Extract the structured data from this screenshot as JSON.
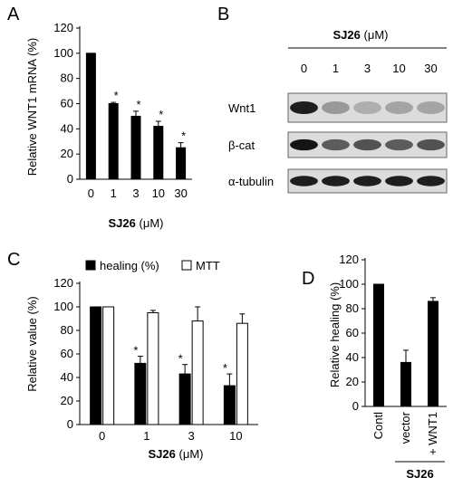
{
  "chart_data": [
    {
      "panel": "A",
      "type": "bar",
      "categories": [
        "0",
        "1",
        "3",
        "10",
        "30"
      ],
      "values": [
        100,
        60,
        50,
        42,
        25
      ],
      "errors": [
        0,
        1,
        4,
        4,
        4
      ],
      "significance": [
        "",
        "*",
        "*",
        "*",
        "*"
      ],
      "ylabel": "Relative WNT1 mRNA (%)",
      "xlabel_bold": "SJ26",
      "xlabel_unit": "(μM)",
      "ylim": [
        0,
        120
      ],
      "yticks": [
        0,
        20,
        40,
        60,
        80,
        100,
        120
      ],
      "color": "#000000"
    },
    {
      "panel": "C",
      "type": "bar",
      "categories": [
        "0",
        "1",
        "3",
        "10"
      ],
      "series": [
        {
          "name": "healing (%)",
          "values": [
            100,
            52,
            43,
            33
          ],
          "errors": [
            0,
            6,
            8,
            10
          ],
          "color": "#000000",
          "significance": [
            "",
            "*",
            "*",
            "*"
          ]
        },
        {
          "name": "MTT",
          "values": [
            100,
            95,
            88,
            86
          ],
          "errors": [
            0,
            2,
            12,
            8
          ],
          "color": "#ffffff",
          "significance": [
            "",
            "",
            "",
            ""
          ]
        }
      ],
      "ylabel": "Relative value (%)",
      "xlabel_bold": "SJ26",
      "xlabel_unit": "(μM)",
      "ylim": [
        0,
        120
      ],
      "yticks": [
        0,
        20,
        40,
        60,
        80,
        100,
        120
      ],
      "legend_position": "top"
    },
    {
      "panel": "D",
      "type": "bar",
      "categories": [
        "Contl",
        "vector",
        "+ WNT1"
      ],
      "values": [
        100,
        36,
        86
      ],
      "errors": [
        0,
        10,
        3
      ],
      "ylabel": "Relative healing (%)",
      "group_label": "SJ26",
      "ylim": [
        0,
        120
      ],
      "yticks": [
        0,
        20,
        40,
        60,
        80,
        100,
        120
      ],
      "color": "#000000"
    }
  ],
  "panel_b": {
    "letter": "B",
    "title_bold": "SJ26",
    "title_unit": "(μM)",
    "lanes": [
      "0",
      "1",
      "3",
      "10",
      "30"
    ],
    "rows": [
      {
        "label": "Wnt1",
        "intensities": [
          0.95,
          0.35,
          0.25,
          0.3,
          0.3
        ]
      },
      {
        "label": "β-cat",
        "intensities": [
          1.0,
          0.65,
          0.7,
          0.65,
          0.7
        ]
      },
      {
        "label": "α-tubulin",
        "intensities": [
          0.95,
          0.95,
          0.95,
          0.95,
          0.95
        ]
      }
    ]
  }
}
